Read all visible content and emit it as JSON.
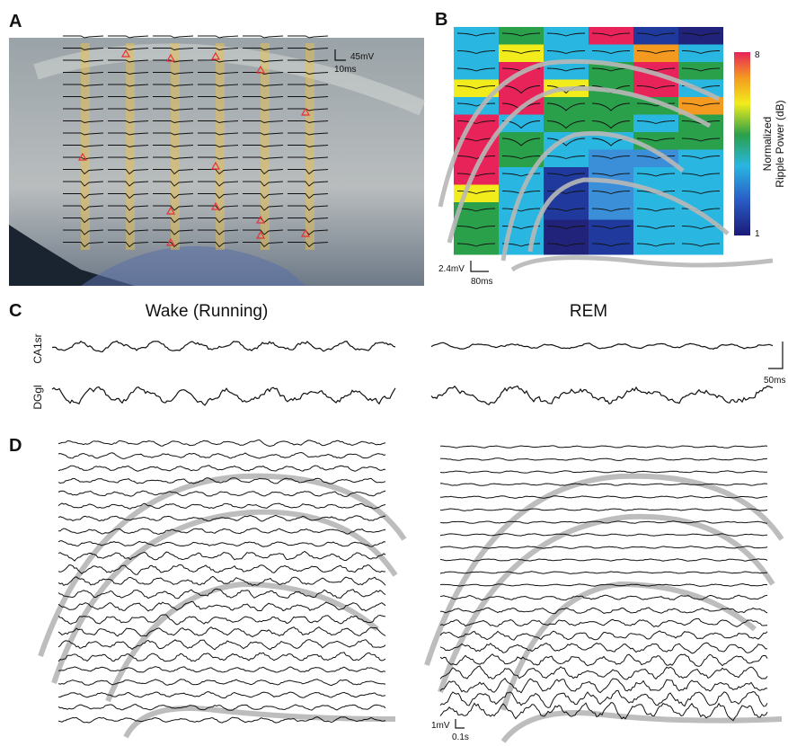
{
  "panels": {
    "a": {
      "label": "A",
      "scale_v": "45mV",
      "scale_t": "10ms"
    },
    "b": {
      "label": "B",
      "scale_v": "2.4mV",
      "scale_t": "80ms",
      "colorbar_title_lines": [
        "Normalized",
        "Ripple Power (dB)"
      ],
      "colorbar_max": 8,
      "colorbar_min": 1
    },
    "c": {
      "label": "C",
      "titles": [
        "Wake (Running)",
        "REM"
      ],
      "channels": [
        "CA1sr",
        "DGgl"
      ],
      "scale_t": "50ms"
    },
    "d": {
      "label": "D",
      "scale_v": "1mV",
      "scale_t": "0.1s"
    }
  }
}
